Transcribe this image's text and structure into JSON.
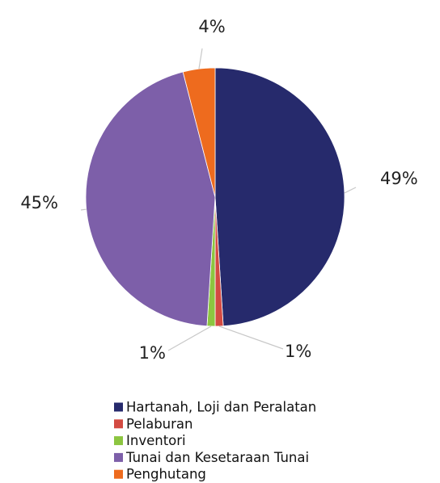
{
  "chart_data": {
    "type": "pie",
    "categories": [
      "Hartanah, Loji dan Peralatan",
      "Pelaburan",
      "Inventori",
      "Tunai dan Kesetaraan Tunai",
      "Penghutang"
    ],
    "values": [
      49,
      1,
      1,
      45,
      4
    ],
    "value_labels": [
      "49%",
      "1%",
      "1%",
      "45%",
      "4%"
    ],
    "colors": [
      "#262a6c",
      "#d34a42",
      "#8cc540",
      "#7d5fa9",
      "#ee6b1e"
    ]
  }
}
